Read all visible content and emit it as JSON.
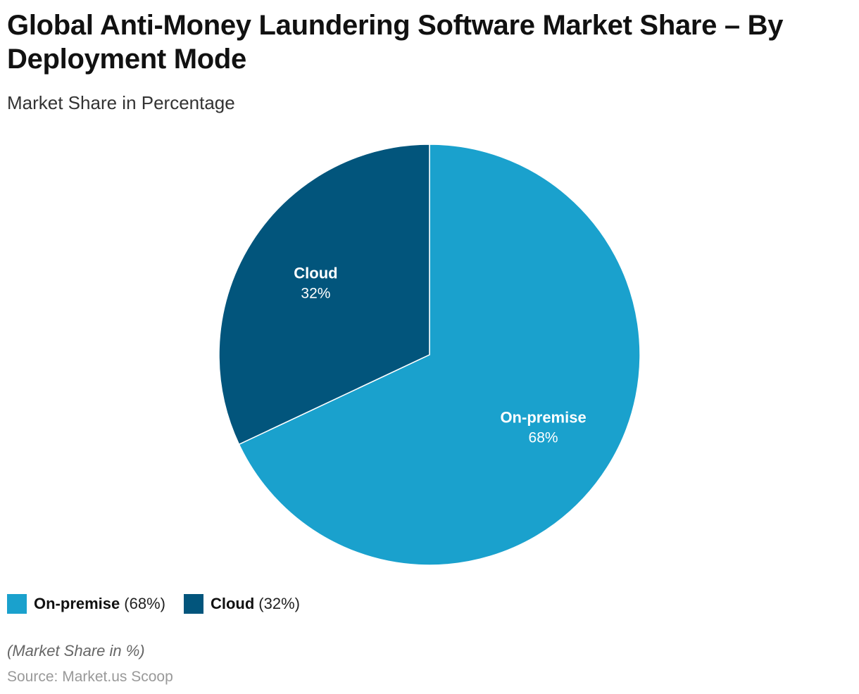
{
  "title": "Global Anti-Money Laundering Software Market Share – By Deployment Mode",
  "subtitle": "Market Share in Percentage",
  "chart_data": {
    "type": "pie",
    "categories": [
      "On-premise",
      "Cloud"
    ],
    "values": [
      68,
      32
    ],
    "value_labels": [
      "68%",
      "32%"
    ],
    "colors": [
      "#1aa1cd",
      "#02557c"
    ],
    "start_angle": "12 o'clock",
    "direction": "clockwise",
    "legend_placement": "bottom-left"
  },
  "legend": [
    {
      "name": "On-premise",
      "value": "(68%)",
      "color": "#1aa1cd"
    },
    {
      "name": "Cloud",
      "value": "(32%)",
      "color": "#02557c"
    }
  ],
  "note": "(Market Share in %)",
  "source": "Source: Market.us Scoop"
}
